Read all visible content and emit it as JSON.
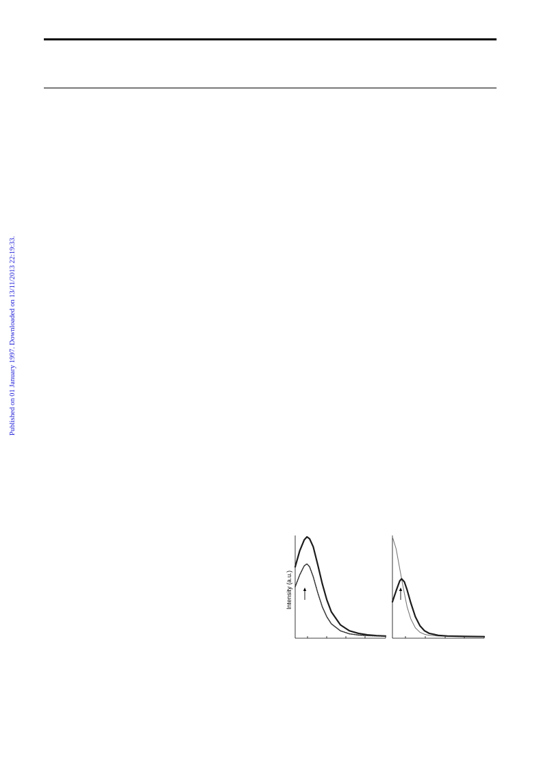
{
  "sidebar": {
    "published_note": "Published on 01 January 1997. Downloaded on 13/11/2013 22:19:33.",
    "link_color": "#1a1ad6"
  },
  "chart_data": [
    {
      "type": "line",
      "panel": "left",
      "ylabel": "Intensity (a.u.)",
      "xlabel": "",
      "title": "",
      "grid": false,
      "annotations": [
        "up-arrow marking peak of lower curve"
      ],
      "series": [
        {
          "style": "solid-bold",
          "x": [
            0,
            0.05,
            0.1,
            0.13,
            0.16,
            0.2,
            0.25,
            0.3,
            0.35,
            0.4,
            0.5,
            0.6,
            0.7,
            0.8,
            0.9,
            1.0
          ],
          "y": [
            0.7,
            0.86,
            0.97,
            1.0,
            0.98,
            0.9,
            0.72,
            0.53,
            0.37,
            0.25,
            0.12,
            0.06,
            0.035,
            0.02,
            0.012,
            0.008
          ]
        },
        {
          "style": "dotted",
          "x": [
            0,
            0.05,
            0.1,
            0.13,
            0.16,
            0.2,
            0.25,
            0.3,
            0.35,
            0.4,
            0.5,
            0.6,
            0.7,
            0.8,
            0.9,
            1.0
          ],
          "y": [
            0.5,
            0.62,
            0.71,
            0.73,
            0.7,
            0.6,
            0.44,
            0.3,
            0.2,
            0.13,
            0.06,
            0.03,
            0.018,
            0.012,
            0.008,
            0.005
          ]
        }
      ]
    },
    {
      "type": "line",
      "panel": "right",
      "ylabel": "",
      "xlabel": "",
      "title": "",
      "grid": false,
      "annotations": [
        "up-arrow marking peak of bold curve"
      ],
      "series": [
        {
          "style": "thin-gray",
          "x": [
            0,
            0.04,
            0.08,
            0.12,
            0.16,
            0.2,
            0.25,
            0.3,
            0.35,
            0.4,
            0.5,
            0.6,
            0.8,
            1.0
          ],
          "y": [
            1.0,
            0.88,
            0.68,
            0.48,
            0.3,
            0.18,
            0.09,
            0.045,
            0.025,
            0.015,
            0.008,
            0.005,
            0.003,
            0.002
          ]
        },
        {
          "style": "solid-bold",
          "x": [
            0,
            0.04,
            0.08,
            0.1,
            0.13,
            0.16,
            0.2,
            0.25,
            0.3,
            0.35,
            0.4,
            0.5,
            0.6,
            0.8,
            1.0
          ],
          "y": [
            0.35,
            0.46,
            0.56,
            0.58,
            0.55,
            0.47,
            0.34,
            0.2,
            0.11,
            0.06,
            0.035,
            0.015,
            0.008,
            0.004,
            0.002
          ]
        }
      ]
    }
  ]
}
